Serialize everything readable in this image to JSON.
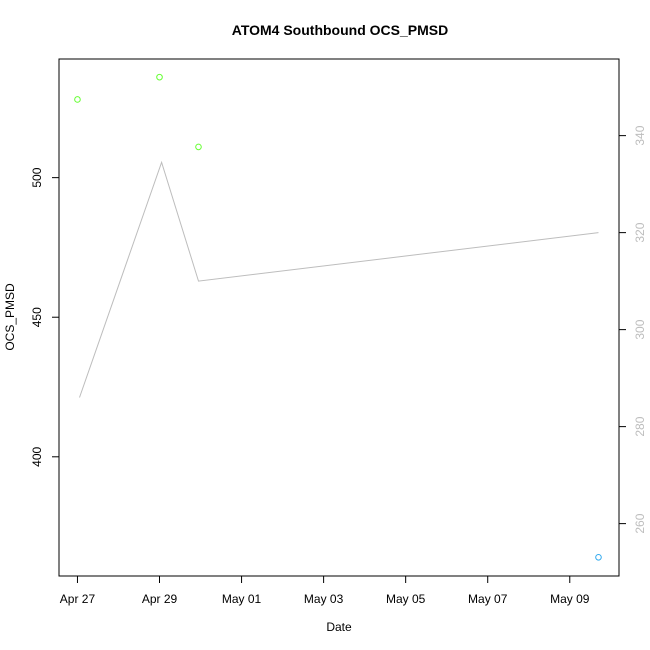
{
  "chart_data": {
    "type": "scatter",
    "title": "ATOM4 Southbound OCS_PMSD",
    "xlabel": "Date",
    "ylabel": "OCS_PMSD",
    "x_ticks": [
      "Apr 27",
      "Apr 29",
      "May 01",
      "May 03",
      "May 05",
      "May 07",
      "May 09"
    ],
    "x_tick_days": [
      0,
      2,
      4,
      6,
      8,
      10,
      12
    ],
    "xlim_days": [
      -0.45,
      13.2
    ],
    "y_left": {
      "ticks": [
        400,
        450,
        500
      ],
      "ylim": [
        357.3,
        542.5
      ]
    },
    "y_right": {
      "ticks": [
        260,
        280,
        300,
        320,
        340
      ],
      "ylim": [
        249.2,
        355.8
      ],
      "tick_color": "#bdbdbd"
    },
    "points": [
      {
        "date": "Apr 27",
        "day": 0.0,
        "y": 528,
        "color": "#66ff33"
      },
      {
        "date": "Apr 29",
        "day": 2.0,
        "y": 536,
        "color": "#66ff33"
      },
      {
        "date": "Apr 29",
        "day": 2.95,
        "y": 511,
        "color": "#66ff33"
      },
      {
        "date": "May 09",
        "day": 12.7,
        "y": 364,
        "color": "#33aaee"
      }
    ],
    "line_series": {
      "axis": "right",
      "color": "#bdbdbd",
      "points": [
        {
          "day": 0.05,
          "y": 286
        },
        {
          "day": 2.05,
          "y": 334.5
        },
        {
          "day": 2.95,
          "y": 310
        },
        {
          "day": 12.7,
          "y": 320
        }
      ]
    }
  }
}
